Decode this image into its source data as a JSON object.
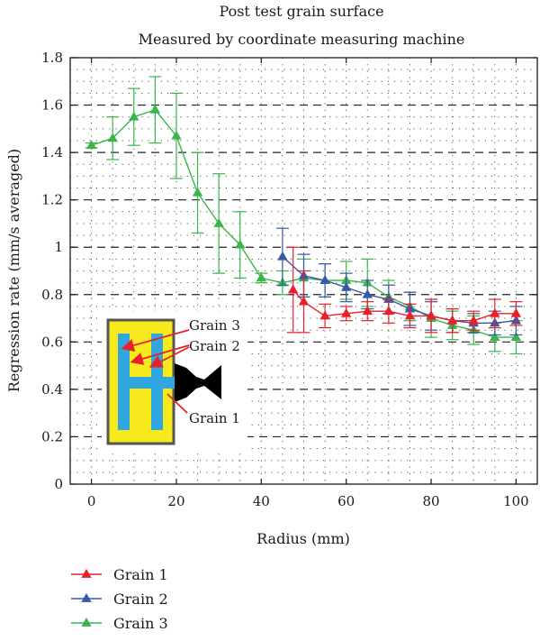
{
  "chart_data": {
    "type": "line",
    "title": "Post test grain surface",
    "subtitle": "Measured by coordinate measuring machine",
    "xlabel": "Radius (mm)",
    "ylabel": "Regression rate (mm/s averaged)",
    "xlim": [
      -5,
      105
    ],
    "ylim": [
      0,
      1.8
    ],
    "xticks": [
      0,
      20,
      40,
      60,
      80,
      100
    ],
    "xtick_labels": [
      "0",
      "20",
      "40",
      "60",
      "80",
      "100"
    ],
    "yticks": [
      0,
      0.2,
      0.4,
      0.6,
      0.8,
      1,
      1.2,
      1.4,
      1.6,
      1.8
    ],
    "ytick_labels": [
      "0",
      "0.2",
      "0.4",
      "0.6",
      "0.8",
      "1",
      "1.2",
      "1.4",
      "1.6",
      "1.8"
    ],
    "grid": "dashed horizontal major lines, dotted minor grid",
    "legend_position": "below-left",
    "series": [
      {
        "name": "Grain 1",
        "color": "#e8202a",
        "marker": "triangle",
        "x": [
          47.5,
          50,
          55,
          60,
          65,
          70,
          75,
          80,
          85,
          90,
          95,
          100
        ],
        "y": [
          0.82,
          0.77,
          0.71,
          0.72,
          0.73,
          0.73,
          0.71,
          0.71,
          0.69,
          0.69,
          0.72,
          0.72
        ],
        "err": [
          0.18,
          0.13,
          0.05,
          0.03,
          0.04,
          0.05,
          0.05,
          0.07,
          0.05,
          0.04,
          0.06,
          0.05
        ]
      },
      {
        "name": "Grain 2",
        "color": "#3a57a8",
        "marker": "triangle",
        "x": [
          45,
          50,
          55,
          60,
          65,
          70,
          75,
          80,
          85,
          90,
          95,
          100
        ],
        "y": [
          0.96,
          0.88,
          0.86,
          0.83,
          0.8,
          0.78,
          0.74,
          0.71,
          0.69,
          0.68,
          0.68,
          0.69
        ],
        "err": [
          0.12,
          0.09,
          0.07,
          0.06,
          0.06,
          0.06,
          0.07,
          0.06,
          0.05,
          0.04,
          0.05,
          0.06
        ]
      },
      {
        "name": "Grain 3",
        "color": "#3ab54a",
        "marker": "triangle",
        "x": [
          0,
          5,
          10,
          15,
          20,
          25,
          30,
          35,
          40,
          45,
          50,
          55,
          60,
          65,
          70,
          75,
          80,
          85,
          90,
          95,
          100
        ],
        "y": [
          1.43,
          1.46,
          1.55,
          1.58,
          1.47,
          1.23,
          1.1,
          1.01,
          0.87,
          0.85,
          0.87,
          0.86,
          0.86,
          0.85,
          0.79,
          0.75,
          0.7,
          0.67,
          0.65,
          0.62,
          0.62
        ],
        "err": [
          0.01,
          0.09,
          0.12,
          0.14,
          0.18,
          0.17,
          0.21,
          0.14,
          0.02,
          0.05,
          0.08,
          0.07,
          0.08,
          0.1,
          0.07,
          0.06,
          0.08,
          0.06,
          0.06,
          0.06,
          0.07
        ]
      }
    ],
    "inset": {
      "labels": [
        "Grain 3",
        "Grain 2",
        "Grain 1"
      ],
      "colors": {
        "grain": "#f7ea1c",
        "port": "#2fa6e0",
        "frame": "#555555",
        "nozzle": "#000000",
        "arrow": "#e8202a"
      }
    }
  }
}
